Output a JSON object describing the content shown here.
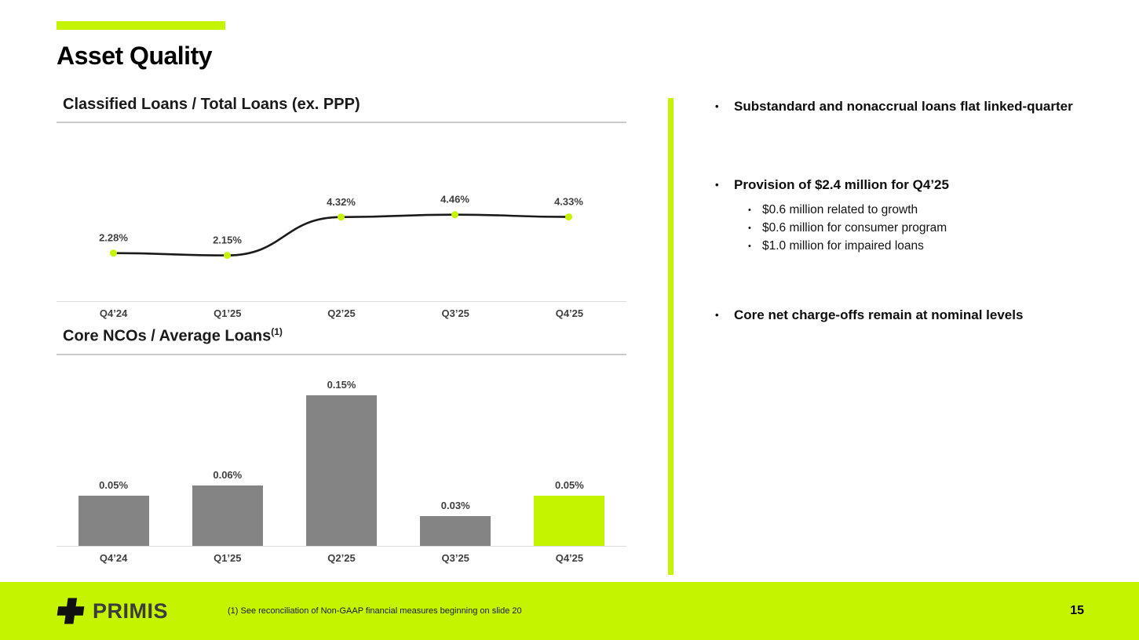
{
  "slide": {
    "title": "Asset Quality",
    "page_number": "15",
    "footnote": "(1) See reconciliation of Non-GAAP financial measures beginning on slide 20",
    "brand": "PRIMIS"
  },
  "colors": {
    "accent": "#c5f400",
    "bar_gray": "#848484",
    "line": "#1a1a1a",
    "axis": "#dcdcdc"
  },
  "bullets": [
    {
      "text": "Substandard and nonaccrual loans flat linked-quarter",
      "sub": []
    },
    {
      "text": "Provision of $2.4 million for Q4’25",
      "sub": [
        "$0.6 million related to growth",
        "$0.6 million for consumer program",
        "$1.0 million for impaired loans"
      ]
    },
    {
      "text": "Core net charge-offs remain at nominal levels",
      "sub": []
    }
  ],
  "chart_data": [
    {
      "type": "line",
      "title": "Classified Loans / Total Loans (ex. PPP)",
      "categories": [
        "Q4’24",
        "Q1’25",
        "Q2’25",
        "Q3’25",
        "Q4’25"
      ],
      "values": [
        2.28,
        2.15,
        4.32,
        4.46,
        4.33
      ],
      "labels": [
        "2.28%",
        "2.15%",
        "4.32%",
        "4.46%",
        "4.33%"
      ],
      "unit": "%",
      "grid": false,
      "legend": false,
      "line_color": "#1a1a1a",
      "marker_color": "#c5f400"
    },
    {
      "type": "bar",
      "title": "Core NCOs / Average Loans",
      "title_superscript": "(1)",
      "categories": [
        "Q4’24",
        "Q1’25",
        "Q2’25",
        "Q3’25",
        "Q4’25"
      ],
      "values": [
        0.05,
        0.06,
        0.15,
        0.03,
        0.05
      ],
      "labels": [
        "0.05%",
        "0.06%",
        "0.15%",
        "0.03%",
        "0.05%"
      ],
      "ylim": [
        0,
        0.18
      ],
      "grid": false,
      "legend": false,
      "bar_color": "#848484",
      "highlight_index": 4,
      "highlight_color": "#c5f400"
    }
  ]
}
